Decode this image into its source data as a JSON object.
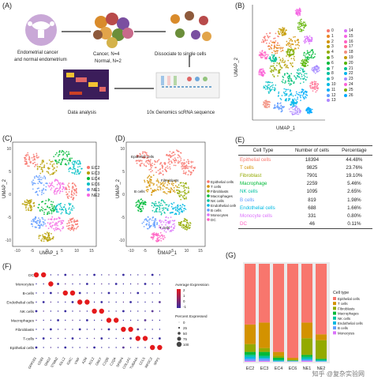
{
  "panels": {
    "A": "(A)",
    "B": "(B)",
    "C": "(C)",
    "D": "(D)",
    "E": "(E)",
    "F": "(F)",
    "G": "(G)"
  },
  "panelA": {
    "sample_caption_1": "Endometrial cancer",
    "sample_caption_2": "and normal endometrium",
    "groups_1": "Cancer, N=4",
    "groups_2": "Normal, N=2",
    "dissociate": "Dissociate to single cells",
    "data_analysis": "Data analysis",
    "sequencing": "10x Genomics scRNA sequence"
  },
  "umapB": {
    "xlabel": "UMAP_1",
    "ylabel": "UMAP_2",
    "legend_left": [
      "0",
      "1",
      "2",
      "3",
      "4",
      "5",
      "6",
      "7",
      "8",
      "9",
      "10",
      "11",
      "12",
      "13"
    ],
    "legend_right": [
      "14",
      "15",
      "16",
      "17",
      "18",
      "19",
      "20",
      "21",
      "22",
      "23",
      "24",
      "25",
      "26"
    ],
    "colors": [
      "#f8766d",
      "#e88526",
      "#d39200",
      "#b79f00",
      "#93aa00",
      "#5eb300",
      "#00ba38",
      "#00bf74",
      "#00c19f",
      "#00bfc4",
      "#00b9e3",
      "#00adfa",
      "#619cff",
      "#ae87ff",
      "#db72fb",
      "#f564e3",
      "#ff61c3",
      "#ff6c91",
      "#f28e7e",
      "#c49a00",
      "#53b400",
      "#00c094",
      "#00b6eb",
      "#a58aff",
      "#fb61d7",
      "#7cae00",
      "#00a9ff"
    ]
  },
  "umapC": {
    "xlabel": "UMAP_1",
    "ylabel": "UMAP_2",
    "xticks": [
      "-10",
      "-5",
      "0",
      "5",
      "10",
      "15"
    ],
    "yticks": [
      "10",
      "5",
      "0",
      "-5",
      "-10"
    ],
    "legend": [
      {
        "label": "EC2",
        "color": "#f8766d"
      },
      {
        "label": "EC3",
        "color": "#b79f00"
      },
      {
        "label": "EC4",
        "color": "#00ba38"
      },
      {
        "label": "EC6",
        "color": "#00bfc4"
      },
      {
        "label": "NE1",
        "color": "#619cff"
      },
      {
        "label": "NE2",
        "color": "#f564e3"
      }
    ]
  },
  "umapD": {
    "xlabel": "UMAP_1",
    "ylabel": "UMAP_2",
    "xticks": [
      "-10",
      "-5",
      "0",
      "5",
      "10",
      "15"
    ],
    "yticks": [
      "10",
      "5",
      "0",
      "-5",
      "-10"
    ],
    "cluster_labels": [
      "Epithelial cells",
      "B cells",
      "Fibroblasts",
      "T cells"
    ],
    "legend": [
      {
        "label": "Epithelial cells",
        "color": "#f8766d"
      },
      {
        "label": "T cells",
        "color": "#d39200"
      },
      {
        "label": "Fibroblasts",
        "color": "#93aa00"
      },
      {
        "label": "Macrophages",
        "color": "#00ba38"
      },
      {
        "label": "NK cells",
        "color": "#00c19f"
      },
      {
        "label": "Endothelial cells",
        "color": "#00b9e3"
      },
      {
        "label": "B cells",
        "color": "#619cff"
      },
      {
        "label": "Monocytes",
        "color": "#db72fb"
      },
      {
        "label": "DC",
        "color": "#ff61c3"
      }
    ]
  },
  "tableE": {
    "headers": [
      "Cell Type",
      "Number of cells",
      "Percentage"
    ],
    "rows": [
      {
        "type": "Epithelial cells",
        "n": "18394",
        "pct": "44.48%",
        "color": "#f8766d"
      },
      {
        "type": "T cells",
        "n": "9825",
        "pct": "23.76%",
        "color": "#d39200"
      },
      {
        "type": "Fibroblast",
        "n": "7901",
        "pct": "19.10%",
        "color": "#93aa00"
      },
      {
        "type": "Macrophage",
        "n": "2259",
        "pct": "5.46%",
        "color": "#00ba38"
      },
      {
        "type": "NK cells",
        "n": "1095",
        "pct": "2.65%",
        "color": "#00c19f"
      },
      {
        "type": "B cells",
        "n": "819",
        "pct": "1.98%",
        "color": "#619cff"
      },
      {
        "type": "Endothelial cells",
        "n": "688",
        "pct": "1.66%",
        "color": "#00b9e3"
      },
      {
        "type": "Monocyte cells",
        "n": "331",
        "pct": "0.80%",
        "color": "#db72fb"
      },
      {
        "type": "DC",
        "n": "46",
        "pct": "0.11%",
        "color": "#ff61c3"
      }
    ]
  },
  "dotplotF": {
    "rows": [
      "DC",
      "Monocytes",
      "B-cells",
      "Endothelial cells",
      "NK cells",
      "Macrophages",
      "Fibroblasts",
      "T-cells",
      "Epithelial cells"
    ],
    "genes": [
      "GPR183",
      "CD83",
      "GNG2",
      "STMN2",
      "IGLL2",
      "IGKC",
      "VWF",
      "A2M",
      "XCL2",
      "GNLY",
      "C1QB",
      "C1QA",
      "SFRP4",
      "COL1A1",
      "TUBA4A",
      "CCL5",
      "WFDC2",
      "SPP1"
    ],
    "legend_title_expr": "Average Expression",
    "legend_expr_ticks": [
      "2",
      "1",
      "0",
      "-1"
    ],
    "legend_title_pct": "Percent Expressed",
    "legend_pct_ticks": [
      "0",
      "25",
      "50",
      "75",
      "100"
    ],
    "colors": {
      "high": "#e41a1c",
      "mid": "#b2182b",
      "low": "#5e3c99",
      "vlow": "#3a2ea0"
    }
  },
  "chart_data": {
    "type": "bar",
    "stacked": true,
    "categories": [
      "EC2",
      "EC3",
      "EC4",
      "EC6",
      "NE1",
      "NE2"
    ],
    "legend_title": "Cell type",
    "ylim": [
      0,
      1
    ],
    "series": [
      {
        "name": "Epithelial cells",
        "color": "#f8766d",
        "values": [
          0.62,
          0.6,
          0.9,
          0.96,
          0.6,
          0.72
        ]
      },
      {
        "name": "T cells",
        "color": "#d39200",
        "values": [
          0.2,
          0.26,
          0.04,
          0.02,
          0.16,
          0.06
        ]
      },
      {
        "name": "Fibroblasts",
        "color": "#93aa00",
        "values": [
          0.08,
          0.04,
          0.02,
          0.005,
          0.17,
          0.19
        ]
      },
      {
        "name": "Macrophages",
        "color": "#00ba38",
        "values": [
          0.03,
          0.04,
          0.02,
          0.005,
          0.02,
          0.01
        ]
      },
      {
        "name": "NK cells",
        "color": "#00c19f",
        "values": [
          0.02,
          0.02,
          0.01,
          0.003,
          0.02,
          0.01
        ]
      },
      {
        "name": "Endothelial cells",
        "color": "#00b9e3",
        "values": [
          0.02,
          0.01,
          0.005,
          0.002,
          0.01,
          0.005
        ]
      },
      {
        "name": "B cells",
        "color": "#619cff",
        "values": [
          0.02,
          0.02,
          0.004,
          0.003,
          0.01,
          0.003
        ]
      },
      {
        "name": "Monocytes",
        "color": "#db72fb",
        "values": [
          0.01,
          0.01,
          0.001,
          0.002,
          0.01,
          0.002
        ]
      }
    ]
  },
  "watermark": "知乎 @复杂实验网"
}
